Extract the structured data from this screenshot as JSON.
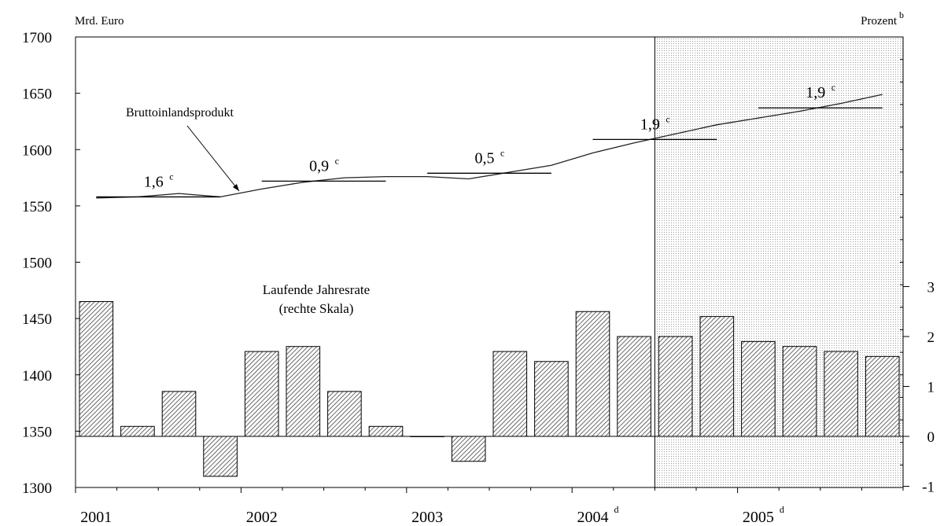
{
  "chart_data": {
    "type": "bar+line",
    "left_axis": {
      "unit": "Mrd. Euro",
      "ylim": [
        1300,
        1700
      ],
      "ticks": [
        "1300",
        "1350",
        "1400",
        "1450",
        "1500",
        "1550",
        "1600",
        "1650",
        "1700"
      ]
    },
    "right_axis": {
      "unit": "Prozent",
      "unit_sup": "b",
      "ylim": [
        -1,
        3
      ],
      "ticks": [
        "-1",
        "0",
        "1",
        "2",
        "3"
      ]
    },
    "x_axis": {
      "year_labels": [
        {
          "label": "2001",
          "sup": ""
        },
        {
          "label": "2002",
          "sup": ""
        },
        {
          "label": "2003",
          "sup": ""
        },
        {
          "label": "2004",
          "sup": "d"
        },
        {
          "label": "2005",
          "sup": "d"
        }
      ],
      "quarters": [
        "2001Q1",
        "2001Q2",
        "2001Q3",
        "2001Q4",
        "2002Q1",
        "2002Q2",
        "2002Q3",
        "2002Q4",
        "2003Q1",
        "2003Q2",
        "2003Q3",
        "2003Q4",
        "2004Q1",
        "2004Q2",
        "2004Q3",
        "2004Q4",
        "2005Q1",
        "2005Q2",
        "2005Q3",
        "2005Q4"
      ]
    },
    "forecast_shading_start": "2004Q3",
    "series": [
      {
        "name": "Bruttoinlandsprodukt",
        "axis": "left",
        "kind": "line",
        "values": [
          1557,
          1558,
          1561,
          1558,
          1565,
          1571,
          1575,
          1576,
          1576,
          1574,
          1580,
          1586,
          1597,
          1606,
          1614,
          1622,
          1628,
          1634,
          1641,
          1649
        ]
      },
      {
        "name": "Laufende Jahresrate",
        "axis": "right",
        "kind": "bar",
        "values": [
          2.7,
          0.2,
          0.9,
          -0.8,
          1.7,
          1.8,
          0.9,
          0.2,
          0.0,
          -0.5,
          1.7,
          1.5,
          2.5,
          2.0,
          2.0,
          2.4,
          1.9,
          1.8,
          1.7,
          1.6
        ]
      }
    ],
    "annual_averages": [
      {
        "year": "2001",
        "level": 1558,
        "label": "1,6",
        "sup": "c"
      },
      {
        "year": "2002",
        "level": 1572,
        "label": "0,9",
        "sup": "c"
      },
      {
        "year": "2003",
        "level": 1579,
        "label": "0,5",
        "sup": "c"
      },
      {
        "year": "2004",
        "level": 1609,
        "label": "1,9",
        "sup": "c"
      },
      {
        "year": "2005",
        "level": 1637,
        "label": "1,9",
        "sup": "c"
      }
    ],
    "annotations": {
      "line_label": "Bruttoinlandsprodukt",
      "bar_label_line1": "Laufende Jahresrate",
      "bar_label_line2": "(rechte Skala)"
    }
  }
}
